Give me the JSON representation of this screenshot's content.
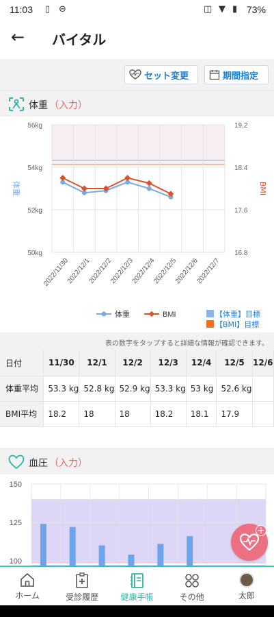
{
  "status": {
    "time": "11:03",
    "battery": "73%"
  },
  "header": {
    "title": "バイタル"
  },
  "toolbar": {
    "set_change": "セット変更",
    "period": "期間指定"
  },
  "weight_section": {
    "title": "体重",
    "input": "（入力）"
  },
  "chart_data": {
    "type": "line",
    "categories": [
      "2022/11/30",
      "2022/12/1",
      "2022/12/2",
      "2022/12/3",
      "2022/12/4",
      "2022/12/5",
      "2022/12/6",
      "2022/12/7"
    ],
    "y_left_ticks": [
      "56kg",
      "54kg",
      "52kg",
      "50kg"
    ],
    "y_right_ticks": [
      "19.2",
      "18.4",
      "17.6",
      "16.8"
    ],
    "ylabel_left": "体重",
    "ylabel_right": "BMI",
    "ylim_left": [
      50,
      56
    ],
    "ylim_right": [
      16.8,
      19.2
    ],
    "series": [
      {
        "name": "体重",
        "axis": "left",
        "color": "#7aaae6",
        "values": [
          53.3,
          52.8,
          52.9,
          53.3,
          53.0,
          52.6,
          null,
          null
        ]
      },
      {
        "name": "BMI",
        "axis": "right",
        "color": "#d9532b",
        "values": [
          18.2,
          18.0,
          18.0,
          18.2,
          18.1,
          17.9,
          null,
          null
        ]
      }
    ],
    "targets": [
      {
        "label": "【体重】目標",
        "color": "#8fb4e8"
      },
      {
        "label": "【BMI】目標",
        "color": "#f07020"
      }
    ]
  },
  "table_note": "表の数字をタップすると詳細な情報が確認できます。",
  "table": {
    "header": [
      "日付",
      "11/30",
      "12/1",
      "12/2",
      "12/3",
      "12/4",
      "12/5",
      "12/6"
    ],
    "rows": [
      {
        "label": "体重平均",
        "cells": [
          "53.3 kg",
          "52.8 kg",
          "52.9 kg",
          "53.3 kg",
          "53 kg",
          "52.6 kg",
          ""
        ]
      },
      {
        "label": "BMI平均",
        "cells": [
          "18.2",
          "18",
          "18",
          "18.2",
          "18.1",
          "17.9",
          ""
        ]
      }
    ]
  },
  "bp_section": {
    "title": "血圧",
    "input": "（入力）"
  },
  "bp_chart": {
    "y_ticks": [
      "150",
      "125",
      "100"
    ],
    "bar_color": "#6fa3ea"
  },
  "nav": [
    {
      "label": "ホーム",
      "icon": "home-icon"
    },
    {
      "label": "受診履歴",
      "icon": "clipboard-icon"
    },
    {
      "label": "健康手帳",
      "icon": "notebook-icon",
      "active": true
    },
    {
      "label": "その他",
      "icon": "grid-icon"
    },
    {
      "label": "太郎",
      "icon": "avatar"
    }
  ],
  "colors": {
    "accent": "#2bb5a5",
    "link": "#1a7fd6",
    "input": "#e66a6a"
  }
}
